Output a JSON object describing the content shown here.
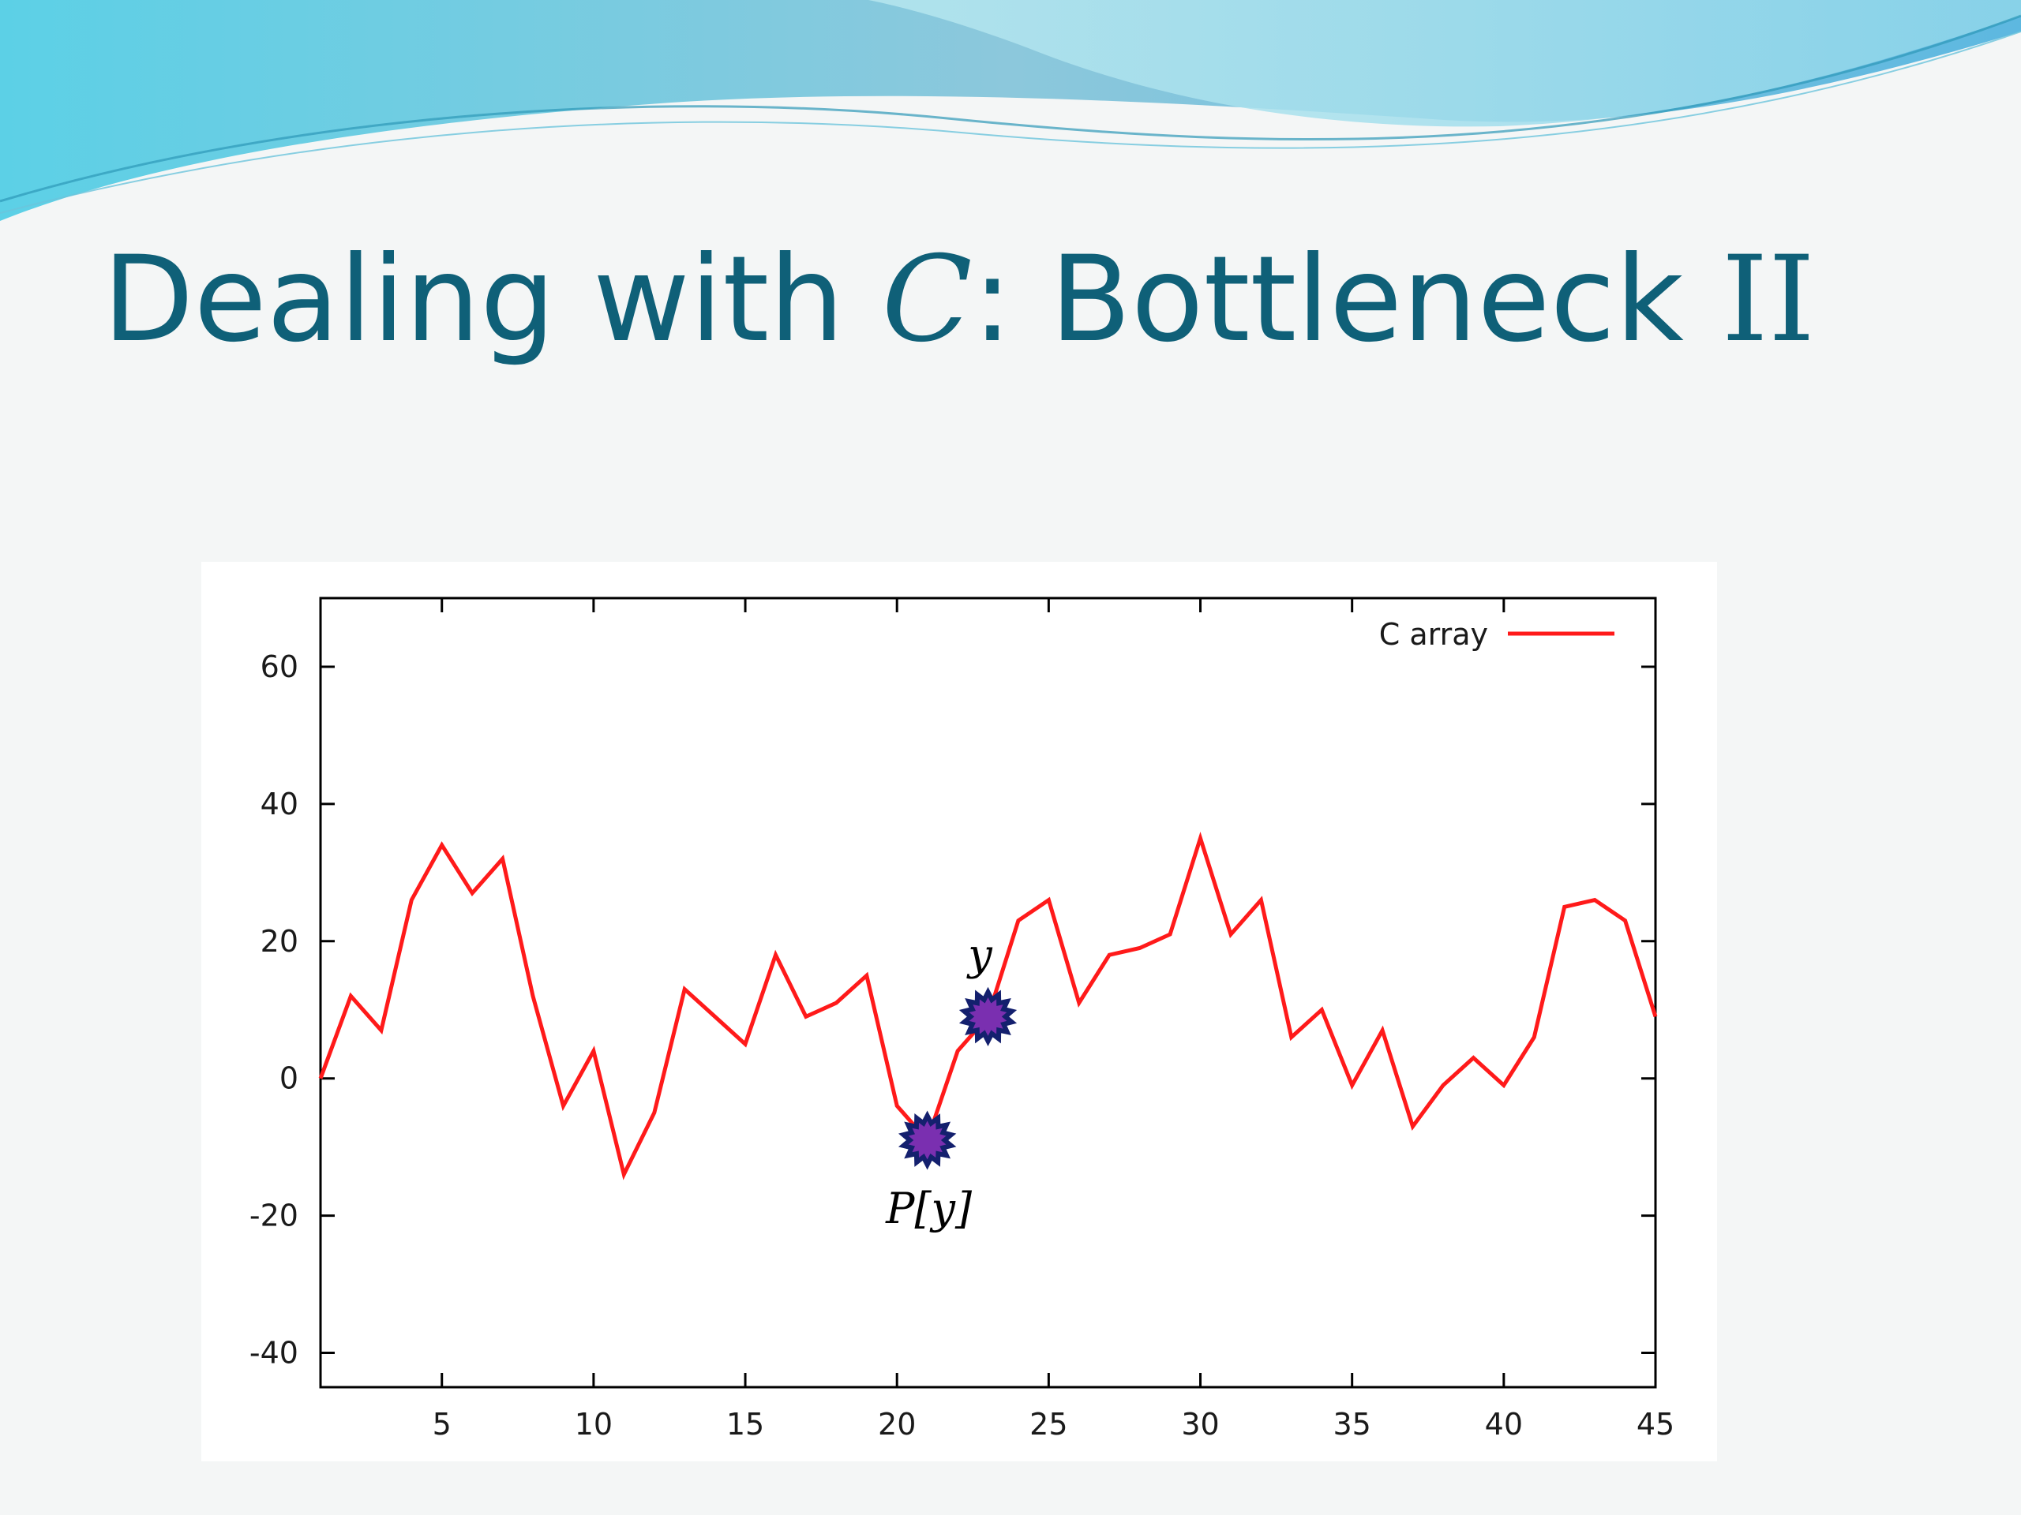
{
  "slide": {
    "title_prefix": "Dealing with ",
    "title_symbol": "C",
    "title_suffix": ": Bottleneck ",
    "title_numeral": "II"
  },
  "colors": {
    "title": "#0f6078",
    "series": "#ff1a1a",
    "marker_fill": "#7a2fb0",
    "marker_edge": "#14206e"
  },
  "chart_data": {
    "type": "line",
    "title": "",
    "xlabel": "",
    "ylabel": "",
    "xlim": [
      1,
      45
    ],
    "ylim": [
      -45,
      70
    ],
    "xticks": [
      5,
      10,
      15,
      20,
      25,
      30,
      35,
      40,
      45
    ],
    "yticks": [
      -40,
      -20,
      0,
      20,
      40,
      60
    ],
    "grid": false,
    "legend": {
      "position": "top-right",
      "entries": [
        "C array"
      ]
    },
    "series": [
      {
        "name": "C array",
        "x": [
          1,
          2,
          3,
          4,
          5,
          6,
          7,
          8,
          9,
          10,
          11,
          12,
          13,
          14,
          15,
          16,
          17,
          18,
          19,
          20,
          21,
          22,
          23,
          24,
          25,
          26,
          27,
          28,
          29,
          30,
          31,
          32,
          33,
          34,
          35,
          36,
          37,
          38,
          39,
          40,
          41,
          42,
          43,
          44,
          45
        ],
        "y": [
          0,
          12,
          7,
          26,
          34,
          27,
          32,
          12,
          -4,
          4,
          -14,
          -5,
          13,
          9,
          5,
          18,
          9,
          11,
          15,
          -4,
          -9,
          4,
          9,
          23,
          26,
          11,
          18,
          19,
          21,
          35,
          21,
          26,
          6,
          10,
          -1,
          7,
          -7,
          -1,
          3,
          -1,
          6,
          25,
          26,
          23,
          9
        ]
      }
    ],
    "annotations": [
      {
        "label": "y",
        "x": 23,
        "y": 9,
        "label_position": "above"
      },
      {
        "label": "P[y]",
        "x": 21,
        "y": -9,
        "label_position": "below"
      }
    ]
  }
}
